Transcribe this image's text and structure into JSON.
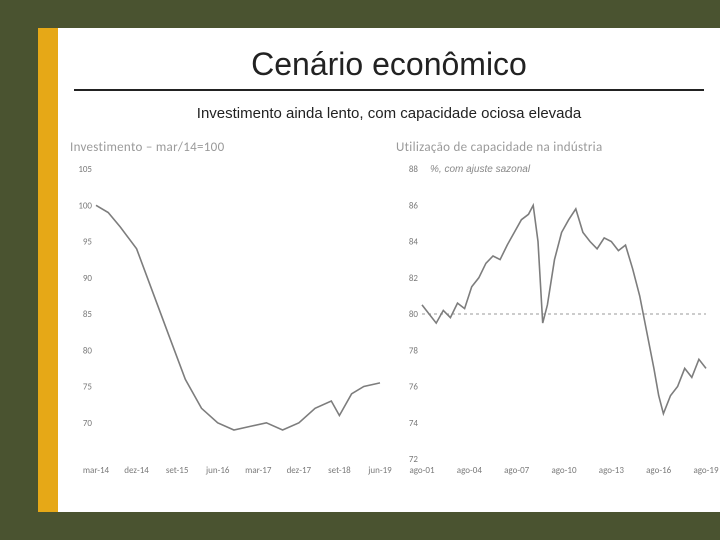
{
  "slide": {
    "title": "Cenário econômico",
    "subtitle": "Investimento ainda lento, com capacidade ociosa elevada",
    "colors": {
      "frame": "#4a5330",
      "accent": "#e6a817",
      "background": "#ffffff",
      "title_text": "#222222",
      "rule": "#222222"
    },
    "title_fontsize": 32,
    "subtitle_fontsize": 15
  },
  "chart_left": {
    "type": "line",
    "title": "Investimento – mar/14=100",
    "title_color": "#9a9a9a",
    "title_fontsize": 13,
    "line_color": "#7d7d7d",
    "line_width": 1.6,
    "background_color": "#ffffff",
    "axis_text_color": "#7a7a7a",
    "axis_fontsize": 9,
    "ylim": [
      65,
      105
    ],
    "yticks": [
      70,
      75,
      80,
      85,
      90,
      95,
      100,
      105
    ],
    "x_labels": [
      "mar-14",
      "dez-14",
      "set-15",
      "jun-16",
      "mar-17",
      "dez-17",
      "set-18",
      "jun-19"
    ],
    "x_values": [
      0,
      1,
      2,
      3,
      4,
      5,
      6,
      7
    ],
    "series": [
      {
        "x": 0.0,
        "y": 100
      },
      {
        "x": 0.3,
        "y": 99
      },
      {
        "x": 0.6,
        "y": 97
      },
      {
        "x": 1.0,
        "y": 94
      },
      {
        "x": 1.4,
        "y": 88
      },
      {
        "x": 1.8,
        "y": 82
      },
      {
        "x": 2.2,
        "y": 76
      },
      {
        "x": 2.6,
        "y": 72
      },
      {
        "x": 3.0,
        "y": 70
      },
      {
        "x": 3.4,
        "y": 69
      },
      {
        "x": 3.8,
        "y": 69.5
      },
      {
        "x": 4.2,
        "y": 70
      },
      {
        "x": 4.6,
        "y": 69
      },
      {
        "x": 5.0,
        "y": 70
      },
      {
        "x": 5.4,
        "y": 72
      },
      {
        "x": 5.8,
        "y": 73
      },
      {
        "x": 6.0,
        "y": 71
      },
      {
        "x": 6.3,
        "y": 74
      },
      {
        "x": 6.6,
        "y": 75
      },
      {
        "x": 7.0,
        "y": 75.5
      }
    ]
  },
  "chart_right": {
    "type": "line",
    "title": "Utilização de capacidade na indústria",
    "subtitle": "%, com ajuste sazonal",
    "title_color": "#9a9a9a",
    "title_fontsize": 13,
    "subtitle_fontsize": 10,
    "line_color": "#7d7d7d",
    "line_width": 1.6,
    "reference_line": {
      "y": 80,
      "color": "#9a9a9a",
      "dash": "3 3"
    },
    "background_color": "#ffffff",
    "axis_text_color": "#7a7a7a",
    "axis_fontsize": 9,
    "ylim": [
      72,
      88
    ],
    "yticks": [
      72,
      74,
      76,
      78,
      80,
      82,
      84,
      86,
      88
    ],
    "x_labels": [
      "ago-01",
      "ago-04",
      "ago-07",
      "ago-10",
      "ago-13",
      "ago-16",
      "ago-19"
    ],
    "x_values": [
      0,
      1,
      2,
      3,
      4,
      5,
      6
    ],
    "series": [
      {
        "x": 0.0,
        "y": 80.5
      },
      {
        "x": 0.15,
        "y": 80.0
      },
      {
        "x": 0.3,
        "y": 79.5
      },
      {
        "x": 0.45,
        "y": 80.2
      },
      {
        "x": 0.6,
        "y": 79.8
      },
      {
        "x": 0.75,
        "y": 80.6
      },
      {
        "x": 0.9,
        "y": 80.3
      },
      {
        "x": 1.05,
        "y": 81.5
      },
      {
        "x": 1.2,
        "y": 82.0
      },
      {
        "x": 1.35,
        "y": 82.8
      },
      {
        "x": 1.5,
        "y": 83.2
      },
      {
        "x": 1.65,
        "y": 83.0
      },
      {
        "x": 1.8,
        "y": 83.8
      },
      {
        "x": 1.95,
        "y": 84.5
      },
      {
        "x": 2.1,
        "y": 85.2
      },
      {
        "x": 2.25,
        "y": 85.5
      },
      {
        "x": 2.35,
        "y": 86.0
      },
      {
        "x": 2.45,
        "y": 84.0
      },
      {
        "x": 2.55,
        "y": 79.5
      },
      {
        "x": 2.65,
        "y": 80.5
      },
      {
        "x": 2.8,
        "y": 83.0
      },
      {
        "x": 2.95,
        "y": 84.5
      },
      {
        "x": 3.1,
        "y": 85.2
      },
      {
        "x": 3.25,
        "y": 85.8
      },
      {
        "x": 3.4,
        "y": 84.5
      },
      {
        "x": 3.55,
        "y": 84.0
      },
      {
        "x": 3.7,
        "y": 83.6
      },
      {
        "x": 3.85,
        "y": 84.2
      },
      {
        "x": 4.0,
        "y": 84.0
      },
      {
        "x": 4.15,
        "y": 83.5
      },
      {
        "x": 4.3,
        "y": 83.8
      },
      {
        "x": 4.45,
        "y": 82.5
      },
      {
        "x": 4.6,
        "y": 81.0
      },
      {
        "x": 4.75,
        "y": 79.0
      },
      {
        "x": 4.9,
        "y": 77.0
      },
      {
        "x": 5.0,
        "y": 75.5
      },
      {
        "x": 5.1,
        "y": 74.5
      },
      {
        "x": 5.25,
        "y": 75.5
      },
      {
        "x": 5.4,
        "y": 76.0
      },
      {
        "x": 5.55,
        "y": 77.0
      },
      {
        "x": 5.7,
        "y": 76.5
      },
      {
        "x": 5.85,
        "y": 77.5
      },
      {
        "x": 6.0,
        "y": 77.0
      }
    ]
  }
}
